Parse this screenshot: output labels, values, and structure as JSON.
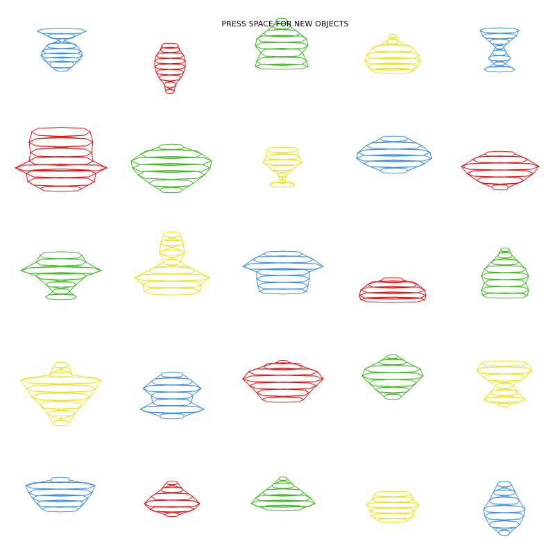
{
  "instruction": "PRESS SPACE FOR NEW OBJECTS",
  "palette": {
    "blue": "#3a8ff0",
    "red": "#ee1111",
    "green": "#3cbb1e",
    "yellow": "#f2e019"
  },
  "objects": [
    {
      "color": "blue",
      "shape": "hourglass-bowl"
    },
    {
      "color": "red",
      "shape": "urn"
    },
    {
      "color": "green",
      "shape": "pagoda"
    },
    {
      "color": "yellow",
      "shape": "tiered-dish"
    },
    {
      "color": "blue",
      "shape": "goblet"
    },
    {
      "color": "red",
      "shape": "wide-hat"
    },
    {
      "color": "green",
      "shape": "saucer-ship"
    },
    {
      "color": "yellow",
      "shape": "small-chalice"
    },
    {
      "color": "blue",
      "shape": "flat-saucer"
    },
    {
      "color": "red",
      "shape": "spinner"
    },
    {
      "color": "green",
      "shape": "brimmed-hat"
    },
    {
      "color": "yellow",
      "shape": "lamp"
    },
    {
      "color": "blue",
      "shape": "bowl-stack"
    },
    {
      "color": "red",
      "shape": "low-tray"
    },
    {
      "color": "green",
      "shape": "tower"
    },
    {
      "color": "yellow",
      "shape": "funnel"
    },
    {
      "color": "blue",
      "shape": "star-stack"
    },
    {
      "color": "red",
      "shape": "cauldron"
    },
    {
      "color": "green",
      "shape": "lantern"
    },
    {
      "color": "yellow",
      "shape": "pedestal"
    },
    {
      "color": "blue",
      "shape": "boat"
    },
    {
      "color": "red",
      "shape": "top"
    },
    {
      "color": "green",
      "shape": "cone-ship"
    },
    {
      "color": "yellow",
      "shape": "cup-stack"
    },
    {
      "color": "blue",
      "shape": "bell"
    }
  ]
}
